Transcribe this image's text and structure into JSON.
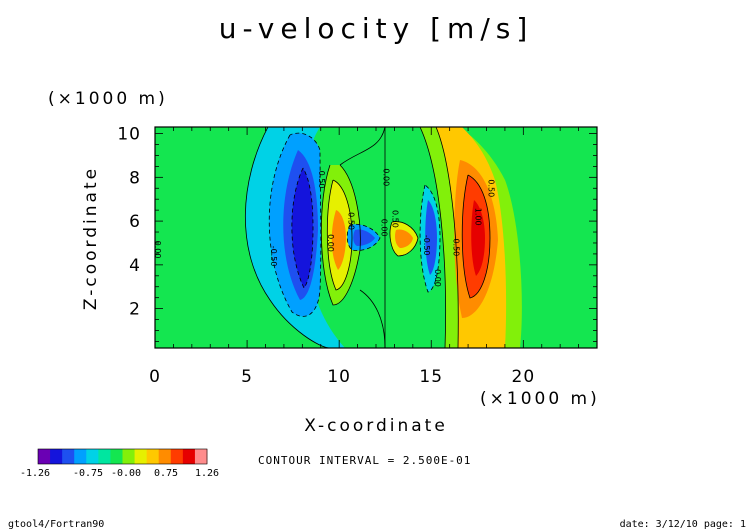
{
  "chart_data": {
    "type": "heatmap",
    "title": "u-velocity [m/s]",
    "xlabel": "X-coordinate",
    "ylabel": "Z-coordinate",
    "x_unit": "(×1000 m)",
    "y_unit": "(×1000 m)",
    "xlim": [
      0,
      24
    ],
    "ylim": [
      0.2,
      10.3
    ],
    "x_ticks": [
      "0",
      "5",
      "10",
      "15",
      "20"
    ],
    "y_ticks": [
      "2",
      "4",
      "6",
      "8",
      "10"
    ],
    "contour_interval_text": "CONTOUR INTERVAL = 2.500E-01",
    "contour_interval": 0.25,
    "colorbar": {
      "labels": [
        "-1.26",
        "-0.75",
        "-0.00",
        "0.75",
        "1.26"
      ],
      "colors": [
        "#6a00b4",
        "#1414dc",
        "#1e50f0",
        "#00a0ff",
        "#00d2e6",
        "#00e6a0",
        "#14e650",
        "#82f00a",
        "#e6f000",
        "#ffc800",
        "#ff8c00",
        "#ff3c00",
        "#e60000",
        "#ff8c8c"
      ]
    },
    "features": [
      {
        "x": 8.0,
        "z": 5.2,
        "value": -1.1
      },
      {
        "x": 10.0,
        "z": 5.0,
        "value": 0.8
      },
      {
        "x": 11.5,
        "z": 5.1,
        "value": -0.8
      },
      {
        "x": 13.7,
        "z": 5.3,
        "value": 0.8
      },
      {
        "x": 15.0,
        "z": 5.0,
        "value": -0.8
      },
      {
        "x": 17.5,
        "z": 5.2,
        "value": 1.2
      }
    ],
    "contour_labels": [
      {
        "text": "0.00",
        "x": 0.0,
        "z": 4.7
      },
      {
        "text": "-0.50",
        "x": 6.3,
        "z": 4.4
      },
      {
        "text": "0.50",
        "x": 8.9,
        "z": 7.9
      },
      {
        "text": "0.50",
        "x": 10.5,
        "z": 6.0
      },
      {
        "text": "0.00",
        "x": 9.4,
        "z": 5.0
      },
      {
        "text": "0.00",
        "x": 12.4,
        "z": 8.0
      },
      {
        "text": "0.00",
        "x": 12.3,
        "z": 5.7
      },
      {
        "text": "0.50",
        "x": 12.9,
        "z": 6.1
      },
      {
        "text": "-0.50",
        "x": 14.6,
        "z": 4.9
      },
      {
        "text": "0.50",
        "x": 16.2,
        "z": 4.8
      },
      {
        "text": "0.00",
        "x": 15.2,
        "z": 3.4
      },
      {
        "text": "0.50",
        "x": 18.1,
        "z": 7.5
      },
      {
        "text": "1.00",
        "x": 17.4,
        "z": 6.2
      }
    ]
  },
  "footer": {
    "left": "gtool4/Fortran90",
    "right": "date: 3/12/10 page: 1"
  }
}
